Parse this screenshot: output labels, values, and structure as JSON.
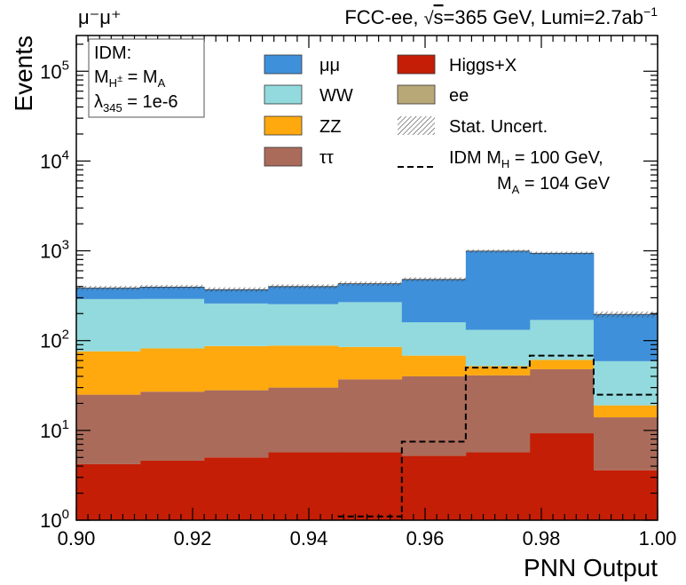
{
  "chart_data": {
    "type": "bar",
    "stacked": true,
    "yscale": "log",
    "bin_edges": [
      0.9,
      0.911,
      0.922,
      0.933,
      0.945,
      0.956,
      0.967,
      0.978,
      0.989,
      1.0
    ],
    "series": [
      {
        "name": "Higgs+X",
        "color": "#c41e06",
        "values": [
          4.2,
          4.6,
          5.0,
          5.7,
          5.7,
          5.2,
          5.7,
          9.3,
          3.6
        ]
      },
      {
        "name": "ee",
        "color": "#b8a878",
        "values": [
          0,
          0,
          0,
          0,
          0,
          0,
          0,
          0,
          0
        ]
      },
      {
        "name": "ττ",
        "color": "#ab6b5a",
        "values": [
          20.8,
          22.4,
          23.0,
          24.3,
          31.3,
          34.8,
          35.3,
          38.7,
          10.4
        ]
      },
      {
        "name": "ZZ",
        "color": "#ffa90e",
        "values": [
          51,
          55,
          59,
          58,
          48,
          28,
          11,
          13,
          5
        ]
      },
      {
        "name": "WW",
        "color": "#92dadd",
        "values": [
          214,
          209,
          172,
          167,
          183,
          92,
          80,
          109,
          40
        ]
      },
      {
        "name": "μμ",
        "color": "#3f90da",
        "values": [
          95,
          104,
          111,
          145,
          162,
          320,
          860,
          770,
          137
        ]
      }
    ],
    "totals": [
      385,
      395,
      370,
      400,
      430,
      480,
      992,
      940,
      196
    ],
    "signal": {
      "name": "IDM M_H = 100 GeV, M_A = 104 GeV",
      "bins": [
        [
          0.945,
          0.956,
          1.1
        ],
        [
          0.956,
          0.967,
          7.5
        ],
        [
          0.967,
          0.978,
          50
        ],
        [
          0.978,
          0.989,
          68
        ],
        [
          0.989,
          1.0,
          25
        ]
      ]
    },
    "xlim": [
      0.9,
      1.0
    ],
    "ylim": [
      1,
      250000
    ],
    "xticks": [
      "0.90",
      "0.92",
      "0.94",
      "0.96",
      "0.98",
      "1.00"
    ],
    "yticks": [
      {
        "base": "10",
        "exp": "0"
      },
      {
        "base": "10",
        "exp": "1"
      },
      {
        "base": "10",
        "exp": "2"
      },
      {
        "base": "10",
        "exp": "3"
      },
      {
        "base": "10",
        "exp": "4"
      },
      {
        "base": "10",
        "exp": "5"
      }
    ],
    "xlabel": "PNN Output",
    "ylabel": "Events",
    "title_left": "μ⁻μ⁺",
    "title_right": {
      "pre": "FCC-ee,  ",
      "sqrt": "√",
      "s": "s",
      "post": "=365 GeV,  Lumi=2.7ab",
      "sup": "−1"
    },
    "annotation": {
      "line1": "IDM:",
      "line2": {
        "a": "M",
        "a_sub": "H",
        "a_sup": "±",
        "eq": " = M",
        "b_sub": "A"
      },
      "line3": {
        "a": "λ",
        "a_sub": "345",
        "rest": " = 1e-6"
      }
    },
    "legend": {
      "mumu": "μμ",
      "ww": "WW",
      "zz": "ZZ",
      "tautau": "ττ",
      "higgs": "Higgs+X",
      "ee": "ee",
      "stat": "Stat. Uncert.",
      "idm_line1_a": "IDM M",
      "idm_line1_sub": "H",
      "idm_line1_b": " = 100 GeV,",
      "idm_line2_a": "M",
      "idm_line2_sub": "A",
      "idm_line2_b": " = 104 GeV"
    }
  }
}
